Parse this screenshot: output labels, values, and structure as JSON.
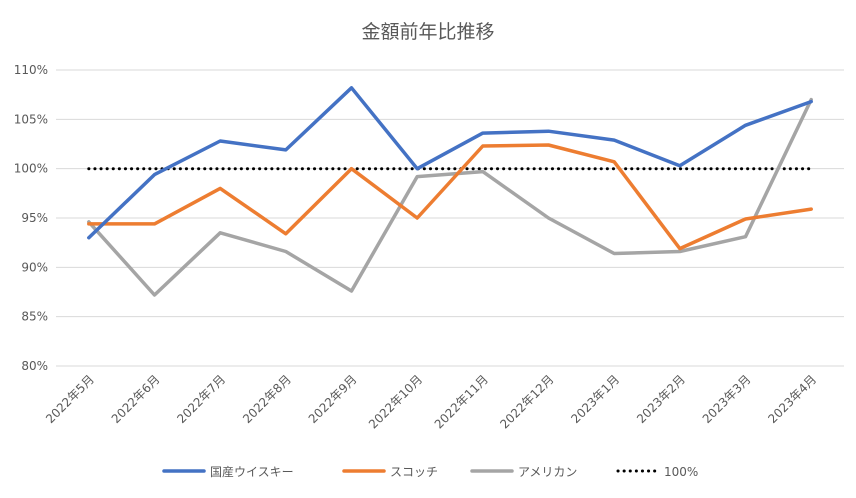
{
  "chart_data": {
    "type": "line",
    "title": "金額前年比推移",
    "xlabel": "",
    "ylabel": "",
    "categories": [
      "2022年5月",
      "2022年6月",
      "2022年7月",
      "2022年8月",
      "2022年9月",
      "2022年10月",
      "2022年11月",
      "2022年12月",
      "2023年1月",
      "2023年2月",
      "2023年3月",
      "2023年4月"
    ],
    "ylim": [
      80,
      110
    ],
    "yticks": [
      80,
      85,
      90,
      95,
      100,
      105,
      110
    ],
    "ytick_labels": [
      "80%",
      "85%",
      "90%",
      "95%",
      "100%",
      "105%",
      "110%"
    ],
    "grid": true,
    "legend_position": "bottom",
    "series": [
      {
        "name": "国産ウイスキー",
        "color": "#4472C4",
        "style": "solid",
        "values": [
          93.0,
          99.4,
          102.8,
          101.9,
          108.2,
          100.0,
          103.6,
          103.8,
          102.9,
          100.3,
          104.4,
          106.8
        ]
      },
      {
        "name": "スコッチ",
        "color": "#ED7D31",
        "style": "solid",
        "values": [
          94.4,
          94.4,
          98.0,
          93.4,
          100.0,
          95.0,
          102.3,
          102.4,
          100.7,
          91.9,
          94.9,
          95.9
        ]
      },
      {
        "name": "アメリカン",
        "color": "#A5A5A5",
        "style": "solid",
        "values": [
          94.6,
          87.2,
          93.5,
          91.6,
          87.6,
          99.2,
          99.7,
          95.0,
          91.4,
          91.6,
          93.1,
          107.0
        ]
      },
      {
        "name": "100%",
        "color": "#000000",
        "style": "dotted",
        "values": [
          100,
          100,
          100,
          100,
          100,
          100,
          100,
          100,
          100,
          100,
          100,
          100
        ]
      }
    ]
  }
}
